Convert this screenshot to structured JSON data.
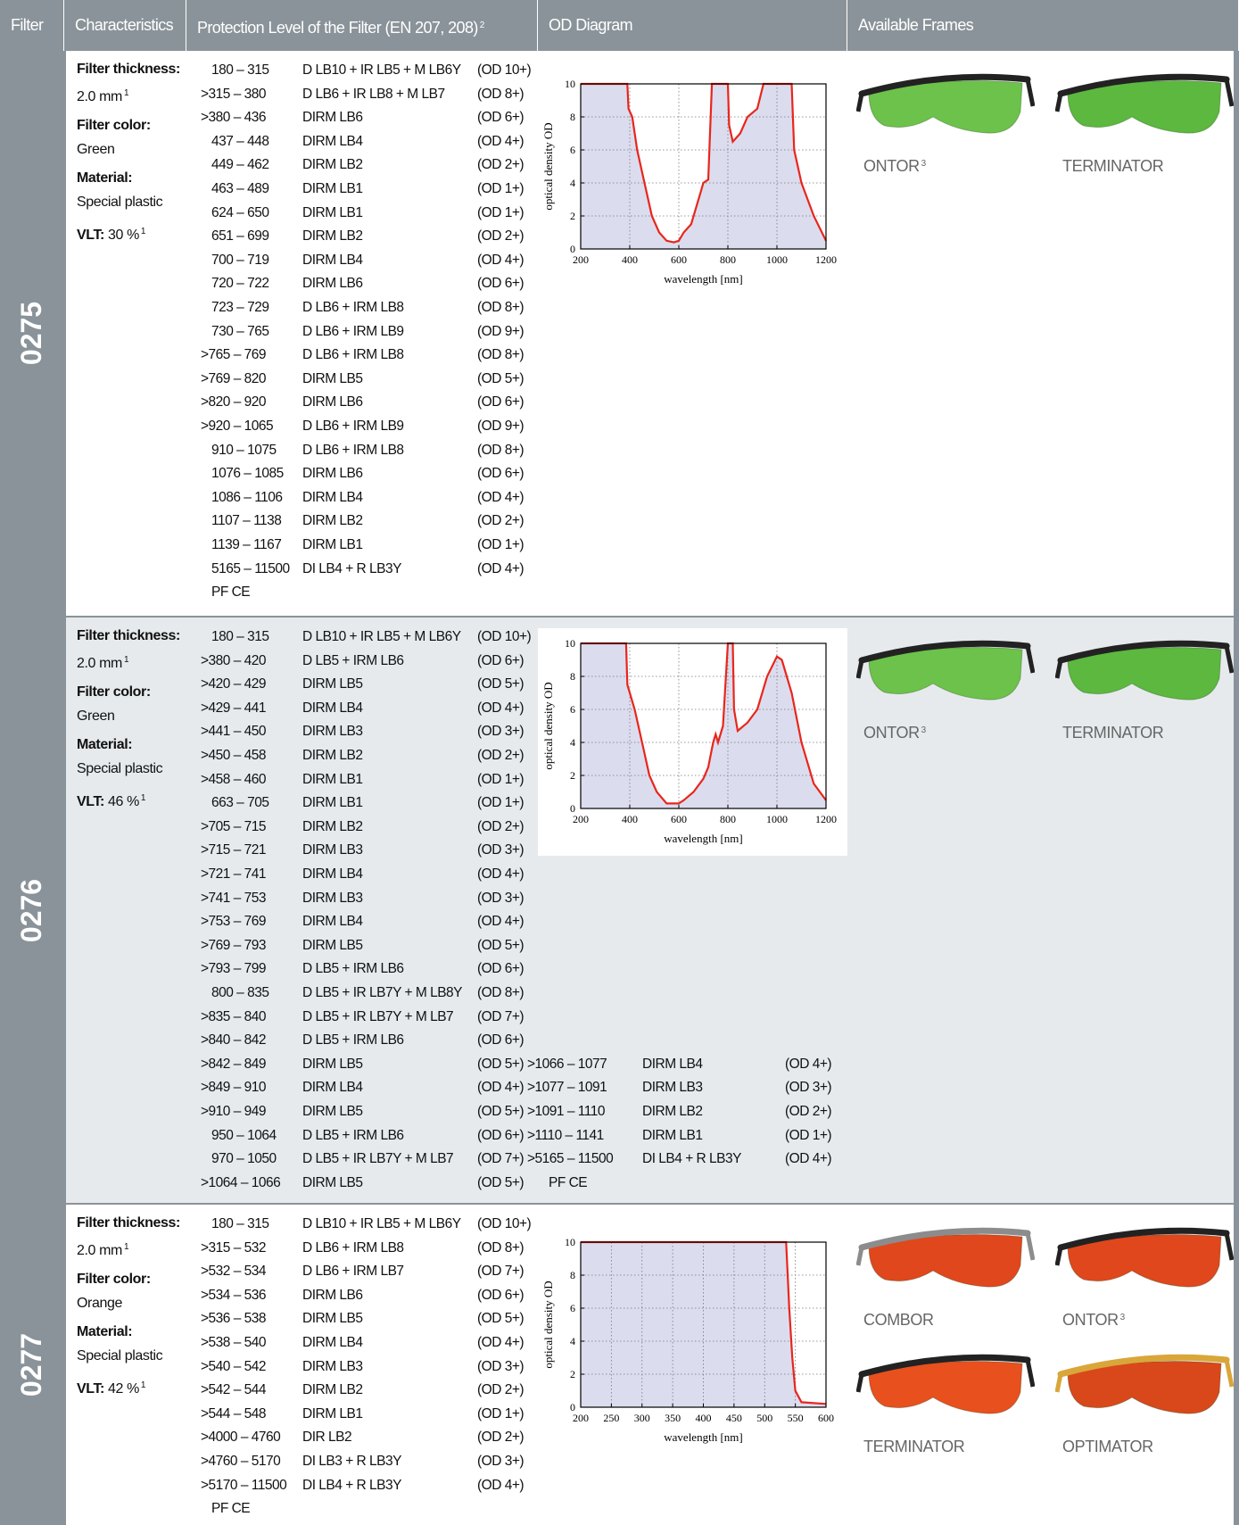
{
  "header": {
    "filter": "Filter",
    "characteristics": "Characteristics",
    "protection": "Protection Level of the Filter (EN 207, 208)",
    "protection_note": "2",
    "diagram": "OD Diagram",
    "frames": "Available Frames"
  },
  "rows": [
    {
      "filter": "0275",
      "characteristics": {
        "thickness_label": "Filter thickness:",
        "thickness": "2.0 mm",
        "thickness_note": "1",
        "color_label": "Filter color:",
        "color": "Green",
        "material_label": "Material:",
        "material": "Special plastic",
        "vlt_label": "VLT:",
        "vlt": "30 %",
        "vlt_note": "1"
      },
      "protection": {
        "lines": [
          [
            "180 – 315",
            "D LB10 + IR LB5 + M LB6Y",
            "(OD 10+)"
          ],
          [
            ">315 – 380",
            "D LB6 + IR LB8 + M LB7",
            "(OD 8+)"
          ],
          [
            ">380 – 436",
            "DIRM LB6",
            "(OD 6+)"
          ],
          [
            "437 – 448",
            "DIRM LB4",
            "(OD 4+)"
          ],
          [
            "449 – 462",
            "DIRM LB2",
            "(OD 2+)"
          ],
          [
            "463 – 489",
            "DIRM LB1",
            "(OD 1+)"
          ],
          [
            "624 – 650",
            "DIRM LB1",
            "(OD 1+)"
          ],
          [
            "651 – 699",
            "DIRM LB2",
            "(OD 2+)"
          ],
          [
            "700 – 719",
            "DIRM LB4",
            "(OD 4+)"
          ],
          [
            "720 – 722",
            "DIRM LB6",
            "(OD 6+)"
          ],
          [
            "723 – 729",
            "D LB6 + IRM LB8",
            "(OD 8+)"
          ],
          [
            "730 – 765",
            "D LB6 + IRM LB9",
            "(OD 9+)"
          ],
          [
            ">765 – 769",
            "D LB6 + IRM LB8",
            "(OD 8+)"
          ],
          [
            ">769 – 820",
            "DIRM LB5",
            "(OD 5+)"
          ],
          [
            ">820 – 920",
            "DIRM LB6",
            "(OD 6+)"
          ],
          [
            ">920 – 1065",
            "D LB6 + IRM LB9",
            "(OD 9+)"
          ],
          [
            "910 – 1075",
            "D LB6 + IRM LB8",
            "(OD 8+)"
          ],
          [
            "1076 – 1085",
            "DIRM LB6",
            "(OD 6+)"
          ],
          [
            "1086 – 1106",
            "DIRM LB4",
            "(OD 4+)"
          ],
          [
            "1107 – 1138",
            "DIRM LB2",
            "(OD 2+)"
          ],
          [
            "1139 – 1167",
            "DIRM LB1",
            "(OD 1+)"
          ],
          [
            "5165 – 11500",
            "DI LB4 + R LB3Y",
            "(OD 4+)"
          ]
        ],
        "pfce": "PF CE"
      },
      "diagram": {
        "type": "line",
        "xlabel": "wavelength [nm]",
        "ylabel": "optical density OD",
        "xlim": [
          200,
          1200
        ],
        "ylim": [
          0,
          10
        ],
        "xticks": [
          200,
          400,
          600,
          800,
          1000,
          1200
        ],
        "yticks": [
          0,
          2,
          4,
          6,
          8,
          10
        ],
        "color": "#e8261c",
        "fill": "#dcdcef",
        "grid": true,
        "series": [
          {
            "x": [
              200,
              390,
              395,
              410,
              430,
              460,
              490,
              520,
              550,
              580,
              600,
              620,
              650,
              670,
              690,
              700,
              720,
              735,
              800,
              805,
              820,
              850,
              880,
              920,
              945,
              1060,
              1070,
              1100,
              1150,
              1200
            ],
            "y": [
              10,
              10,
              8.5,
              8,
              6,
              4,
              2,
              1,
              0.5,
              0.4,
              0.5,
              1,
              1.5,
              2.5,
              3.5,
              4,
              4.2,
              10,
              10,
              7.5,
              6.5,
              7,
              8,
              8.5,
              10,
              10,
              6,
              4,
              2,
              0.5
            ]
          }
        ]
      },
      "frames": [
        {
          "name": "ONTOR",
          "note": "3",
          "lens": "#6cc24a",
          "frame": "#222222"
        },
        {
          "name": "TERMINATOR",
          "lens": "#5cb83e",
          "frame": "#222222"
        }
      ]
    },
    {
      "filter": "0276",
      "characteristics": {
        "thickness_label": "Filter thickness:",
        "thickness": "2.0 mm",
        "thickness_note": "1",
        "color_label": "Filter color:",
        "color": "Green",
        "material_label": "Material:",
        "material": "Special plastic",
        "vlt_label": "VLT:",
        "vlt": "46 %",
        "vlt_note": "1"
      },
      "protection": {
        "lines": [
          [
            "180 – 315",
            "D LB10 + IR LB5 + M LB6Y",
            "(OD 10+)"
          ],
          [
            ">380 – 420",
            "D LB5 + IRM LB6",
            "(OD 6+)"
          ],
          [
            ">420 – 429",
            "DIRM LB5",
            "(OD 5+)"
          ],
          [
            ">429 – 441",
            "DIRM LB4",
            "(OD 4+)"
          ],
          [
            ">441 – 450",
            "DIRM LB3",
            "(OD 3+)"
          ],
          [
            ">450 – 458",
            "DIRM LB2",
            "(OD 2+)"
          ],
          [
            ">458 – 460",
            "DIRM LB1",
            "(OD 1+)"
          ],
          [
            "663 – 705",
            "DIRM LB1",
            "(OD 1+)"
          ],
          [
            ">705 – 715",
            "DIRM LB2",
            "(OD 2+)"
          ],
          [
            ">715 – 721",
            "DIRM LB3",
            "(OD 3+)"
          ],
          [
            ">721 – 741",
            "DIRM LB4",
            "(OD 4+)"
          ],
          [
            ">741 – 753",
            "DIRM LB3",
            "(OD 3+)"
          ],
          [
            ">753 – 769",
            "DIRM LB4",
            "(OD 4+)"
          ],
          [
            ">769 – 793",
            "DIRM LB5",
            "(OD 5+)"
          ],
          [
            ">793 – 799",
            "D LB5 + IRM LB6",
            "(OD 6+)"
          ],
          [
            "800 – 835",
            "D LB5 + IR LB7Y + M LB8Y",
            "(OD 8+)"
          ],
          [
            ">835 – 840",
            "D LB5 + IR LB7Y + M LB7",
            "(OD 7+)"
          ],
          [
            ">840 – 842",
            "D LB5 + IRM LB6",
            "(OD 6+)"
          ],
          [
            ">842 – 849",
            "DIRM LB5",
            "(OD 5+)"
          ],
          [
            ">849 – 910",
            "DIRM LB4",
            "(OD 4+)"
          ],
          [
            ">910 – 949",
            "DIRM LB5",
            "(OD 5+)"
          ],
          [
            "950 – 1064",
            "D LB5 + IRM LB6",
            "(OD 6+)"
          ],
          [
            "970 – 1050",
            "D LB5 + IR LB7Y + M LB7",
            "(OD 7+)"
          ],
          [
            ">1064 – 1066",
            "DIRM LB5",
            "(OD 5+)"
          ]
        ],
        "extra": [
          [
            ">1066 – 1077",
            "DIRM LB4",
            "(OD 4+)"
          ],
          [
            ">1077 – 1091",
            "DIRM LB3",
            "(OD 3+)"
          ],
          [
            ">1091 – 1110",
            "DIRM LB2",
            "(OD 2+)"
          ],
          [
            ">1110 – 1141",
            "DIRM LB1",
            "(OD 1+)"
          ],
          [
            ">5165 – 11500",
            "DI LB4 + R LB3Y",
            "(OD 4+)"
          ]
        ],
        "pfce": "PF CE"
      },
      "diagram": {
        "type": "line",
        "xlabel": "wavelength [nm]",
        "ylabel": "optical density OD",
        "xlim": [
          200,
          1200
        ],
        "ylim": [
          0,
          10
        ],
        "xticks": [
          200,
          400,
          600,
          800,
          1000,
          1200
        ],
        "yticks": [
          0,
          2,
          4,
          6,
          8,
          10
        ],
        "color": "#e8261c",
        "fill": "#dcdcef",
        "grid": true,
        "background": "#ffffff",
        "series": [
          {
            "x": [
              200,
              385,
              390,
              420,
              450,
              480,
              510,
              550,
              600,
              620,
              660,
              700,
              720,
              740,
              750,
              760,
              780,
              800,
              820,
              825,
              840,
              880,
              920,
              960,
              1000,
              1020,
              1060,
              1100,
              1150,
              1200
            ],
            "y": [
              10,
              10,
              7.5,
              6,
              4,
              2,
              1,
              0.3,
              0.3,
              0.5,
              1,
              1.8,
              2.5,
              4,
              4.5,
              4,
              5,
              10,
              10,
              6,
              4.7,
              5.2,
              6,
              8,
              9.2,
              9,
              7,
              4,
              1.5,
              0.5
            ]
          }
        ]
      },
      "frames": [
        {
          "name": "ONTOR",
          "note": "3",
          "lens": "#6cc24a",
          "frame": "#222222"
        },
        {
          "name": "TERMINATOR",
          "lens": "#5cb83e",
          "frame": "#222222"
        }
      ]
    },
    {
      "filter": "0277",
      "characteristics": {
        "thickness_label": "Filter thickness:",
        "thickness": "2.0 mm",
        "thickness_note": "1",
        "color_label": "Filter color:",
        "color": "Orange",
        "material_label": "Material:",
        "material": "Special plastic",
        "vlt_label": "VLT:",
        "vlt": "42 %",
        "vlt_note": "1"
      },
      "protection": {
        "lines": [
          [
            "180 – 315",
            "D LB10 + IR LB5 + M LB6Y",
            "(OD 10+)"
          ],
          [
            ">315 – 532",
            "D LB6 + IRM LB8",
            "(OD 8+)"
          ],
          [
            ">532 – 534",
            "D LB6 + IRM LB7",
            "(OD 7+)"
          ],
          [
            ">534 – 536",
            "DIRM LB6",
            "(OD 6+)"
          ],
          [
            ">536 – 538",
            "DIRM LB5",
            "(OD 5+)"
          ],
          [
            ">538 – 540",
            "DIRM LB4",
            "(OD 4+)"
          ],
          [
            ">540 – 542",
            "DIRM LB3",
            "(OD 3+)"
          ],
          [
            ">542 – 544",
            "DIRM LB2",
            "(OD 2+)"
          ],
          [
            ">544 – 548",
            "DIRM LB1",
            "(OD 1+)"
          ],
          [
            ">4000 – 4760",
            "DIR LB2",
            "(OD 2+)"
          ],
          [
            ">4760 – 5170",
            "DI LB3 + R LB3Y",
            "(OD 3+)"
          ],
          [
            ">5170 – 11500",
            "DI LB4 + R LB3Y",
            "(OD 4+)"
          ]
        ],
        "pfce": "PF CE"
      },
      "diagram": {
        "type": "line",
        "xlabel": "wavelength [nm]",
        "ylabel": "optical density OD",
        "xlim": [
          200,
          600
        ],
        "ylim": [
          0,
          10
        ],
        "xticks": [
          200,
          250,
          300,
          350,
          400,
          450,
          500,
          550,
          600
        ],
        "yticks": [
          0,
          2,
          4,
          6,
          8,
          10
        ],
        "color": "#e8261c",
        "fill": "#dcdcef",
        "grid": true,
        "series": [
          {
            "x": [
              200,
              535,
              540,
              545,
              550,
              560,
              600
            ],
            "y": [
              10,
              10,
              6,
              3,
              1,
              0.3,
              0.2
            ]
          }
        ]
      },
      "frames": [
        {
          "name": "COMBOR",
          "lens": "#e0471c",
          "frame": "#8c8c8c"
        },
        {
          "name": "ONTOR",
          "note": "3",
          "lens": "#e0471c",
          "frame": "#222222"
        },
        {
          "name": "TERMINATOR",
          "lens": "#e8501e",
          "frame": "#222222"
        },
        {
          "name": "OPTIMATOR",
          "lens": "#d9481a",
          "frame": "#d9a63a"
        }
      ]
    }
  ]
}
